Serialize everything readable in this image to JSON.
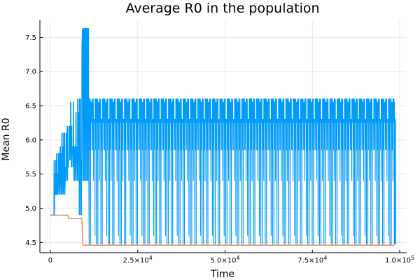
{
  "chart_data": {
    "type": "line",
    "title": "Average R0 in the population",
    "xlabel": "Time",
    "ylabel": "Mean R0",
    "xlim": [
      -3000,
      102000
    ],
    "ylim": [
      4.35,
      7.75
    ],
    "grid": true,
    "legend": "none",
    "xticks": [
      {
        "value": 0,
        "label": "0",
        "base": "",
        "exp": ""
      },
      {
        "value": 25000,
        "label": "",
        "base": "2.5×10",
        "exp": "4"
      },
      {
        "value": 50000,
        "label": "",
        "base": "5.0×10",
        "exp": "4"
      },
      {
        "value": 75000,
        "label": "",
        "base": "7.5×10",
        "exp": "4"
      },
      {
        "value": 100000,
        "label": "",
        "base": "1.0×10",
        "exp": "5"
      }
    ],
    "yticks": [
      {
        "value": 4.5,
        "label": "4.5"
      },
      {
        "value": 5.0,
        "label": "5.0"
      },
      {
        "value": 5.5,
        "label": "5.5"
      },
      {
        "value": 6.0,
        "label": "6.0"
      },
      {
        "value": 6.5,
        "label": "6.5"
      },
      {
        "value": 7.0,
        "label": "7.0"
      },
      {
        "value": 7.5,
        "label": "7.5"
      }
    ],
    "series": [
      {
        "color": "#009af9",
        "generator": {
          "type": "oscillating",
          "x_start": 0,
          "x_end": 98500,
          "baseline": 4.9,
          "early_phase": {
            "until": 9000,
            "period": 250,
            "high_values": [
              5.7,
              5.5,
              5.8,
              5.9,
              6.1,
              5.6,
              6.2,
              6.55,
              5.9,
              6.4,
              6.6
            ],
            "low_values": [
              4.9,
              5.2,
              5.2,
              5.4,
              5.2,
              5.4,
              5.7,
              5.9,
              5.6,
              5.4,
              5.9
            ]
          },
          "spike_phase": {
            "from": 9000,
            "until": 11000,
            "high": 7.63,
            "low": 5.4
          },
          "steady_phase": {
            "period": 420,
            "high_values": [
              6.6,
              6.55,
              6.6,
              6.3,
              6.6
            ],
            "low_values": [
              4.47,
              5.4,
              6.0,
              5.85,
              4.6,
              5.4,
              6.25,
              4.47
            ]
          }
        }
      },
      {
        "color": "#e26f46",
        "points": [
          [
            0,
            4.9
          ],
          [
            1000,
            4.9
          ],
          [
            5000,
            4.9
          ],
          [
            5200,
            4.85
          ],
          [
            9000,
            4.85
          ],
          [
            9300,
            4.46
          ],
          [
            98500,
            4.46
          ]
        ]
      }
    ]
  }
}
